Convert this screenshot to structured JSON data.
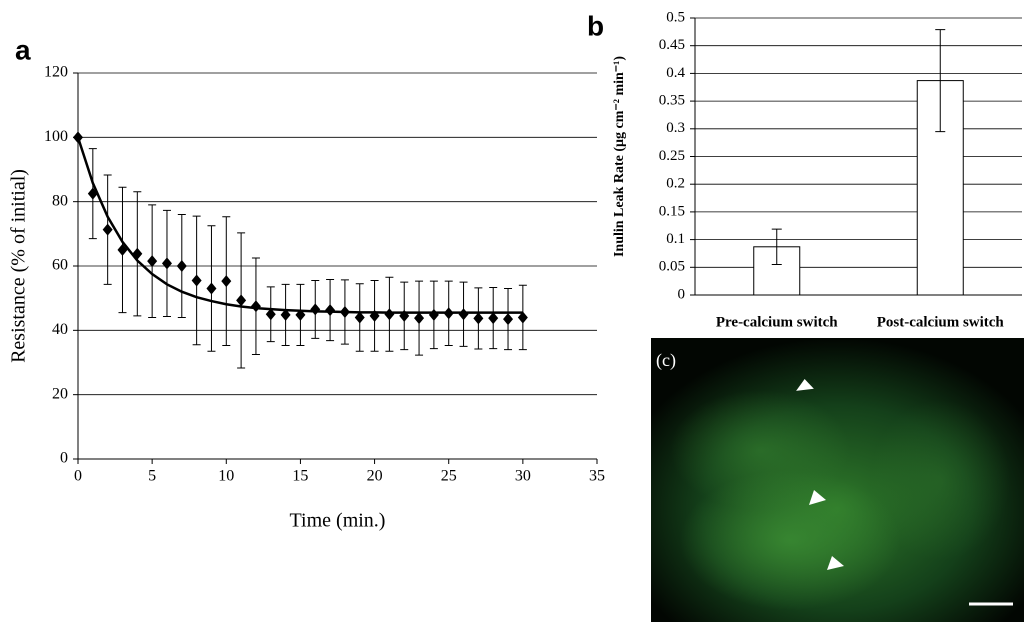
{
  "chart_data": [
    {
      "type": "scatter",
      "panel_label": "a",
      "x_label": "Time (min.)",
      "y_label": "Resistance (% of initial)",
      "x": [
        0,
        1,
        2,
        3,
        4,
        5,
        6,
        7,
        8,
        9,
        10,
        11,
        12,
        13,
        14,
        15,
        16,
        17,
        18,
        19,
        20,
        21,
        22,
        23,
        24,
        25,
        26,
        27,
        28,
        29,
        30
      ],
      "series": [
        {
          "color": "#000000",
          "marker": "diamond",
          "values": [
            100,
            82.5,
            71.3,
            65,
            63.8,
            61.5,
            60.8,
            60,
            55.5,
            53,
            55.3,
            49.3,
            47.5,
            45,
            44.8,
            44.8,
            46.5,
            46.3,
            45.7,
            44,
            44.5,
            45,
            44.5,
            43.8,
            44.8,
            45.3,
            45,
            43.7,
            43.8,
            43.5,
            44
          ],
          "errors": [
            0,
            14,
            17,
            19.5,
            19.3,
            17.5,
            16.5,
            16,
            20,
            19.5,
            20,
            21,
            15,
            8.5,
            9.5,
            9.5,
            9,
            9.5,
            10,
            10.5,
            11,
            11.5,
            10.5,
            11.5,
            10.5,
            10,
            10,
            9.5,
            9.5,
            9.5,
            10
          ]
        },
        {
          "color": "#000000",
          "marker": "line",
          "values": [
            100,
            85.8,
            75.3,
            67.5,
            61.7,
            57.5,
            54.3,
            52,
            50.3,
            49.1,
            48.1,
            47.4,
            46.9,
            46.6,
            46.3,
            46.1,
            45.9,
            45.8,
            45.7,
            45.6,
            45.6,
            45.5,
            45.5,
            45.5,
            45.5,
            45.5,
            45.5,
            45.5,
            45.5,
            45.5,
            45.5
          ]
        }
      ],
      "xlim": [
        0,
        35
      ],
      "xticks": [
        0,
        5,
        10,
        15,
        20,
        25,
        30,
        35
      ],
      "ylim": [
        0,
        120
      ],
      "yticks": [
        0,
        20,
        40,
        60,
        80,
        100,
        120
      ],
      "grid": true
    },
    {
      "type": "bar",
      "panel_label": "b",
      "y_label": "Inulin Leak Rate (μg cm⁻² min⁻¹)",
      "categories": [
        "Pre-calcium switch",
        "Post-calcium switch"
      ],
      "values": [
        0.087,
        0.387
      ],
      "errors": [
        0.032,
        0.092
      ],
      "color": "#ffffff",
      "ylim": [
        0,
        0.5
      ],
      "yticks": [
        0,
        0.05,
        0.1,
        0.15,
        0.2,
        0.25,
        0.3,
        0.35,
        0.4,
        0.45,
        0.5
      ],
      "grid": true
    }
  ],
  "image": {
    "label": "(c)"
  }
}
